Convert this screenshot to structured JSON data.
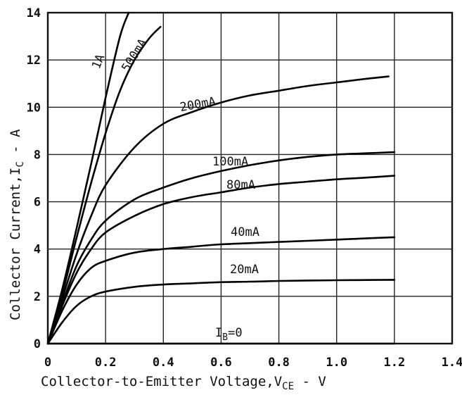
{
  "chart_data": {
    "type": "line",
    "title": "",
    "xlabel": "Collector-to-Emitter Voltage,V",
    "xlabel_sub": "CE",
    "xlabel_tail": " - V",
    "ylabel": "Collector Current,I",
    "ylabel_sub": "C",
    "ylabel_tail": " - A",
    "xlim": [
      0,
      1.4
    ],
    "ylim": [
      0,
      14
    ],
    "xticks": [
      0,
      0.2,
      0.4,
      0.6,
      0.8,
      1.0,
      1.2,
      1.4
    ],
    "xtick_labels": [
      "0",
      "0.2",
      "0.4",
      "0.6",
      "0.8",
      "1.0",
      "1.2",
      "1.4"
    ],
    "yticks": [
      0,
      2,
      4,
      6,
      8,
      10,
      12,
      14
    ],
    "ytick_labels": [
      "0",
      "2",
      "4",
      "6",
      "8",
      "10",
      "12",
      "14"
    ],
    "grid": true,
    "series": [
      {
        "name": "1A",
        "x": [
          0,
          0.05,
          0.1,
          0.15,
          0.2,
          0.25,
          0.28
        ],
        "y": [
          0,
          2.3,
          4.9,
          7.6,
          10.4,
          13.0,
          14.0
        ]
      },
      {
        "name": "500mA",
        "x": [
          0,
          0.05,
          0.1,
          0.15,
          0.2,
          0.25,
          0.3,
          0.35,
          0.39
        ],
        "y": [
          0,
          2.1,
          4.5,
          6.8,
          8.9,
          10.7,
          12.0,
          12.9,
          13.4
        ]
      },
      {
        "name": "200mA",
        "x": [
          0,
          0.05,
          0.1,
          0.15,
          0.2,
          0.3,
          0.4,
          0.5,
          0.6,
          0.7,
          0.8,
          0.9,
          1.0,
          1.1,
          1.18
        ],
        "y": [
          0,
          1.9,
          3.8,
          5.4,
          6.7,
          8.3,
          9.3,
          9.8,
          10.2,
          10.5,
          10.7,
          10.9,
          11.05,
          11.2,
          11.3
        ]
      },
      {
        "name": "100mA",
        "x": [
          0,
          0.05,
          0.1,
          0.15,
          0.2,
          0.3,
          0.4,
          0.5,
          0.6,
          0.7,
          0.8,
          0.9,
          1.0,
          1.1,
          1.2
        ],
        "y": [
          0,
          1.7,
          3.3,
          4.4,
          5.2,
          6.1,
          6.6,
          7.0,
          7.3,
          7.55,
          7.75,
          7.9,
          8.0,
          8.05,
          8.1
        ]
      },
      {
        "name": "80mA",
        "x": [
          0,
          0.05,
          0.1,
          0.15,
          0.2,
          0.3,
          0.4,
          0.5,
          0.6,
          0.7,
          0.8,
          0.9,
          1.0,
          1.1,
          1.2
        ],
        "y": [
          0,
          1.6,
          3.0,
          4.0,
          4.7,
          5.4,
          5.9,
          6.2,
          6.4,
          6.6,
          6.75,
          6.85,
          6.95,
          7.02,
          7.1
        ]
      },
      {
        "name": "40mA",
        "x": [
          0,
          0.05,
          0.1,
          0.15,
          0.2,
          0.3,
          0.4,
          0.5,
          0.6,
          0.7,
          0.8,
          0.9,
          1.0,
          1.1,
          1.2
        ],
        "y": [
          0,
          1.4,
          2.5,
          3.2,
          3.5,
          3.85,
          4.0,
          4.1,
          4.2,
          4.25,
          4.3,
          4.35,
          4.4,
          4.45,
          4.5
        ]
      },
      {
        "name": "20mA",
        "x": [
          0,
          0.05,
          0.1,
          0.15,
          0.2,
          0.3,
          0.4,
          0.5,
          0.6,
          0.7,
          0.8,
          0.9,
          1.0,
          1.1,
          1.2
        ],
        "y": [
          0,
          0.9,
          1.6,
          2.0,
          2.2,
          2.4,
          2.5,
          2.55,
          2.6,
          2.62,
          2.65,
          2.67,
          2.68,
          2.69,
          2.7
        ]
      },
      {
        "name": "IB=0",
        "x": [
          0,
          1.2
        ],
        "y": [
          0,
          0
        ]
      }
    ],
    "labels": {
      "s1A": "1A",
      "s500": "500mA",
      "s200": "200mA",
      "s100": "100mA",
      "s80": "80mA",
      "s40": "40mA",
      "s20": "20mA",
      "ib_main": "I",
      "ib_sub": "B",
      "ib_tail": "=0"
    }
  }
}
